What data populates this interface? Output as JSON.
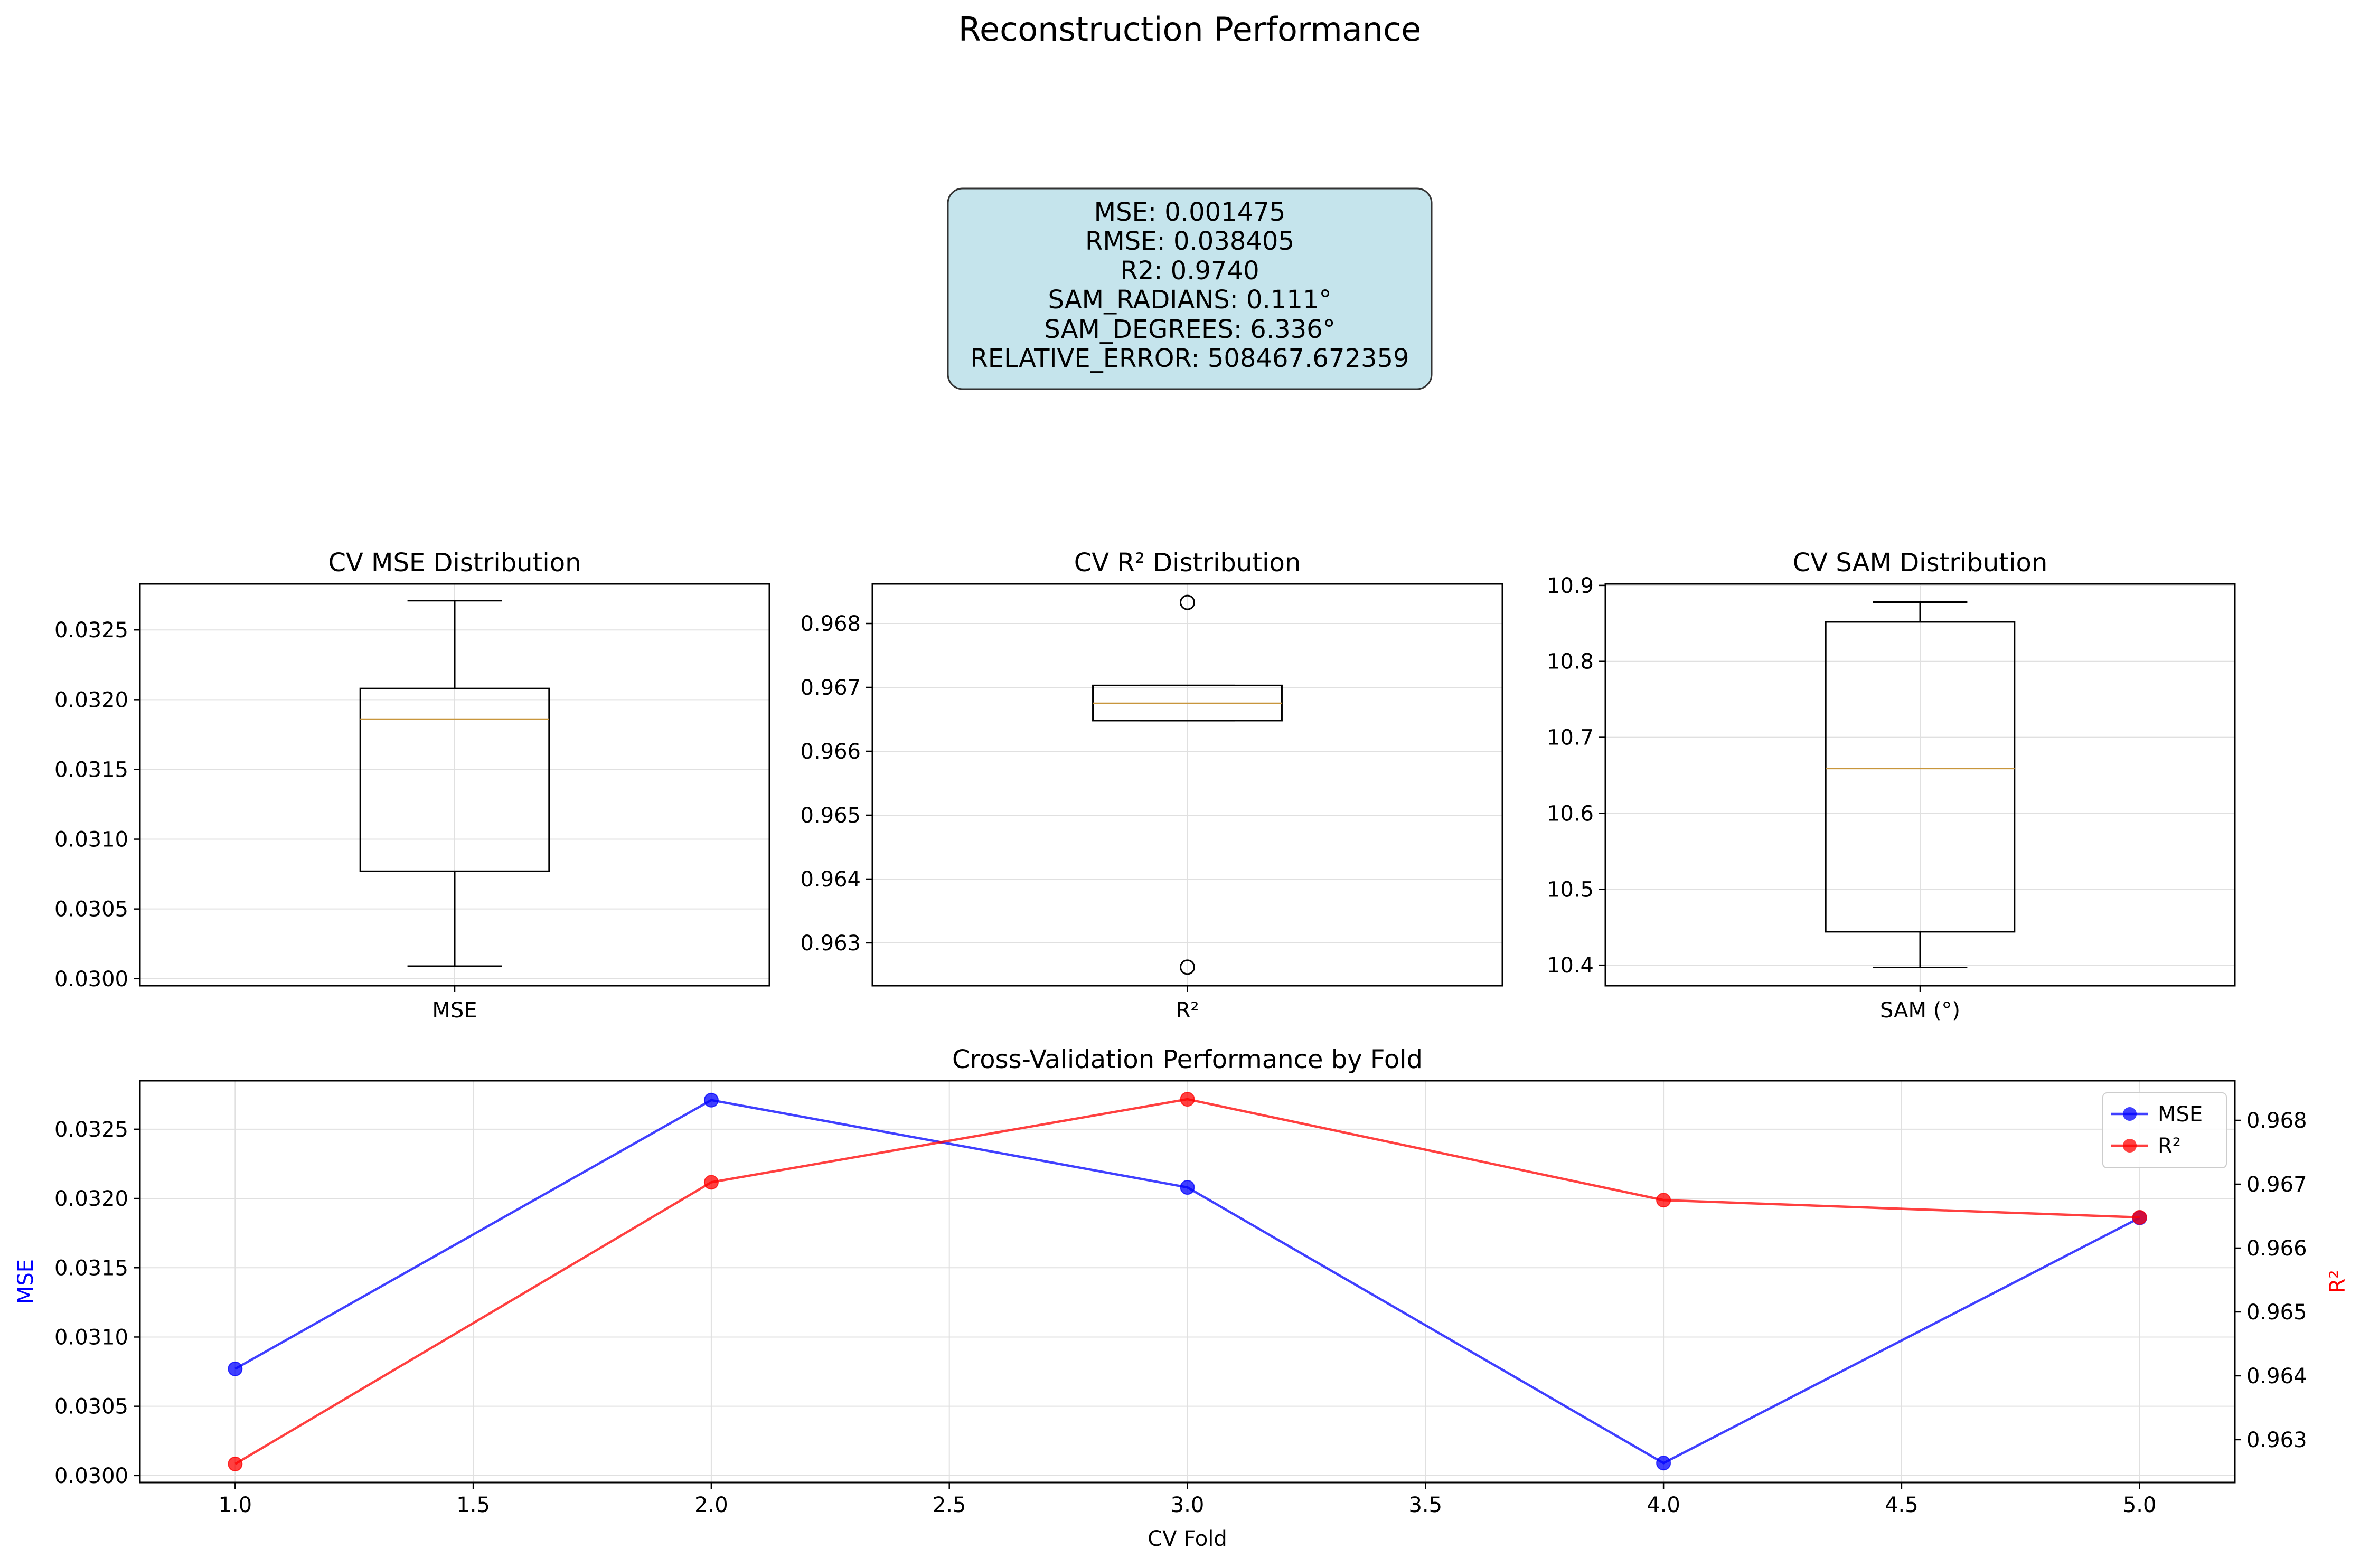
{
  "figure": {
    "title": "Reconstruction Performance"
  },
  "metrics_box": {
    "lines": [
      "MSE: 0.001475",
      "RMSE: 0.038405",
      "R2: 0.9740",
      "SAM_RADIANS: 0.111°",
      "SAM_DEGREES: 6.336°",
      "RELATIVE_ERROR: 508467.672359"
    ],
    "background_color": "#c5e4ec",
    "border_color": "#333333"
  },
  "colors": {
    "mse": "#0000ff",
    "r2": "#ff0000",
    "median": "#c8963c",
    "grid": "#e0e0e0"
  },
  "chart_data": [
    {
      "type": "box",
      "title": "CV MSE Distribution",
      "categories": [
        "MSE"
      ],
      "values": [
        0.03077,
        0.03271,
        0.03208,
        0.03009,
        0.03186
      ],
      "stats": {
        "whislo": 0.03009,
        "q1": 0.03077,
        "med": 0.03186,
        "q3": 0.03208,
        "whishi": 0.03271,
        "fliers": []
      },
      "ylim": [
        0.02995,
        0.03283
      ],
      "yticks": [
        "0.0300",
        "0.0305",
        "0.0310",
        "0.0315",
        "0.0320",
        "0.0325"
      ],
      "grid": true
    },
    {
      "type": "box",
      "title": "CV R² Distribution",
      "categories": [
        "R²"
      ],
      "values": [
        0.96262,
        0.96703,
        0.96833,
        0.96675,
        0.96648
      ],
      "stats": {
        "whislo": 0.96648,
        "q1": 0.96648,
        "med": 0.96675,
        "q3": 0.96703,
        "whishi": 0.96703,
        "fliers": [
          0.96833,
          0.96262
        ]
      },
      "ylim": [
        0.96233,
        0.96862
      ],
      "yticks": [
        "0.963",
        "0.964",
        "0.965",
        "0.966",
        "0.967",
        "0.968"
      ],
      "grid": true
    },
    {
      "type": "box",
      "title": "CV SAM Distribution",
      "categories": [
        "SAM (°)"
      ],
      "values": [
        10.878,
        10.852,
        10.659,
        10.444,
        10.397
      ],
      "stats": {
        "whislo": 10.397,
        "q1": 10.444,
        "med": 10.659,
        "q3": 10.852,
        "whishi": 10.878,
        "fliers": []
      },
      "ylim": [
        10.373,
        10.902
      ],
      "yticks": [
        "10.4",
        "10.5",
        "10.6",
        "10.7",
        "10.8",
        "10.9"
      ],
      "grid": true
    },
    {
      "type": "line",
      "title": "Cross-Validation Performance by Fold",
      "xlabel": "CV Fold",
      "x": [
        1,
        2,
        3,
        4,
        5
      ],
      "xlim": [
        0.8,
        5.2
      ],
      "xticks": [
        "1.0",
        "1.5",
        "2.0",
        "2.5",
        "3.0",
        "3.5",
        "4.0",
        "4.5",
        "5.0"
      ],
      "series": [
        {
          "name": "MSE",
          "axis": "left",
          "color": "#0000ff",
          "values": [
            0.03077,
            0.03271,
            0.03208,
            0.03009,
            0.03186
          ]
        },
        {
          "name": "R²",
          "axis": "right",
          "color": "#ff0000",
          "values": [
            0.96262,
            0.96703,
            0.96833,
            0.96675,
            0.96648
          ]
        }
      ],
      "ylabel_left": "MSE",
      "ylabel_right": "R²",
      "ylim_left": [
        0.02995,
        0.03285
      ],
      "ylim_right": [
        0.96233,
        0.96862
      ],
      "yticks_left": [
        "0.0300",
        "0.0305",
        "0.0310",
        "0.0315",
        "0.0320",
        "0.0325"
      ],
      "yticks_right": [
        "0.963",
        "0.964",
        "0.965",
        "0.966",
        "0.967",
        "0.968"
      ],
      "legend_position": "top-right",
      "grid": true
    }
  ]
}
